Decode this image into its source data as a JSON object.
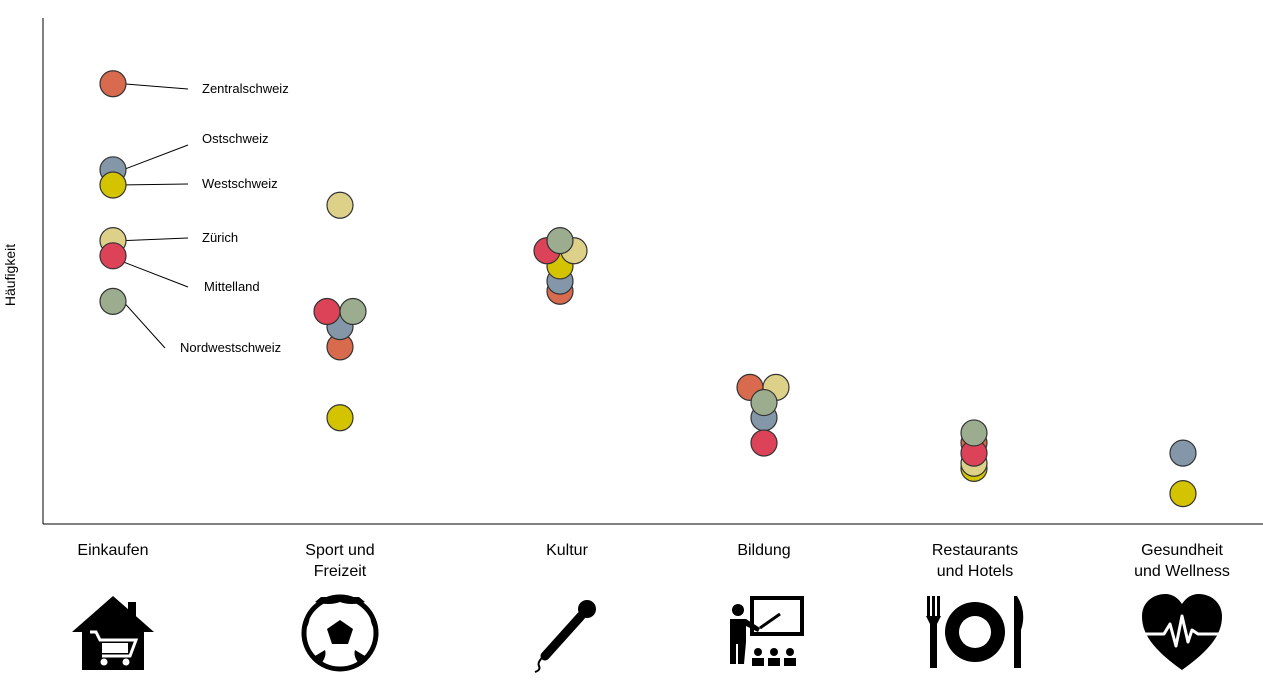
{
  "chart_data": {
    "type": "scatter",
    "ylabel": "Häufigkeit",
    "xlabel": "",
    "title": "",
    "grid": false,
    "legend": "annotated callouts beside first category",
    "ylim": [
      0,
      100
    ],
    "categories": [
      "Einkaufen",
      "Sport und Freizeit",
      "Kultur",
      "Bildung",
      "Restaurants und Hotels",
      "Gesundheit und Wellness"
    ],
    "category_lines": [
      [
        "Einkaufen"
      ],
      [
        "Sport und",
        "Freizeit"
      ],
      [
        "Kultur"
      ],
      [
        "Bildung"
      ],
      [
        "Restaurants",
        "und Hotels"
      ],
      [
        "Gesundheit",
        "und Wellness"
      ]
    ],
    "category_icons": [
      "house-cart-icon",
      "soccer-ball-icon",
      "microphone-icon",
      "teacher-board-icon",
      "plate-cutlery-icon",
      "heart-pulse-icon"
    ],
    "series": [
      {
        "name": "Zentralschweiz",
        "color": "#D86A4E",
        "values": [
          87,
          35,
          46,
          27,
          16,
          null
        ]
      },
      {
        "name": "Ostschweiz",
        "color": "#8497A9",
        "values": [
          70,
          39,
          48,
          21,
          null,
          14
        ]
      },
      {
        "name": "Westschweiz",
        "color": "#D4C400",
        "values": [
          67,
          21,
          51,
          null,
          11,
          6
        ]
      },
      {
        "name": "Zürich",
        "color": "#DDD18A",
        "values": [
          56,
          63,
          54,
          27,
          12,
          null
        ]
      },
      {
        "name": "Mittelland",
        "color": "#DC4358",
        "values": [
          53,
          42,
          54,
          16,
          14,
          null
        ]
      },
      {
        "name": "Nordwestschweiz",
        "color": "#9BAD8E",
        "values": [
          44,
          42,
          56,
          24,
          18,
          null
        ]
      }
    ]
  }
}
